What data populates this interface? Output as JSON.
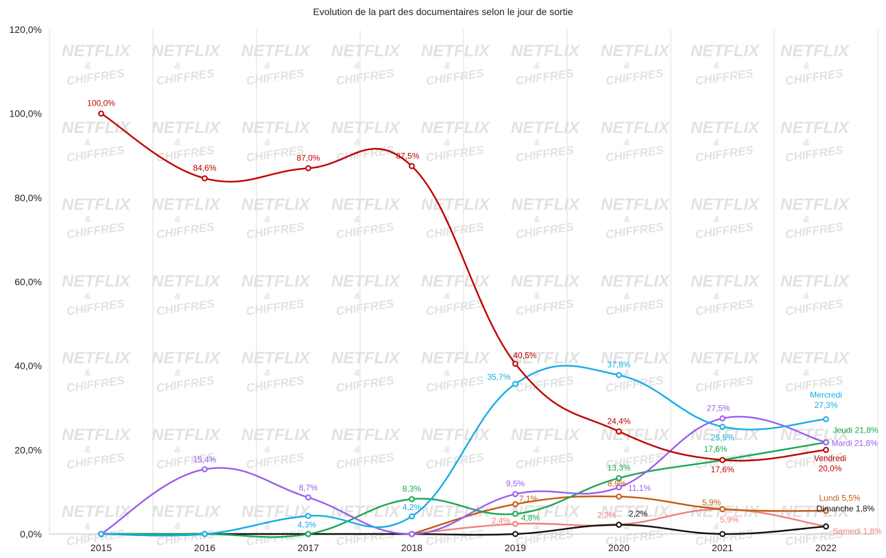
{
  "chart_data": {
    "type": "line",
    "title": "Evolution de la part des documentaires selon le jour de sortie",
    "xlabel": "",
    "ylabel": "",
    "ylim": [
      0,
      120
    ],
    "yticks": [
      "0,0%",
      "20,0%",
      "40,0%",
      "60,0%",
      "80,0%",
      "100,0%",
      "120,0%"
    ],
    "x": [
      "2015",
      "2016",
      "2017",
      "2018",
      "2019",
      "2020",
      "2021",
      "2022"
    ],
    "grid": "vertical",
    "watermark": {
      "line1": "NETFLIX",
      "line2": "&",
      "line3": "CHIFFRES"
    },
    "series": [
      {
        "name": "Vendredi",
        "color": "#c00000",
        "values": [
          100.0,
          84.6,
          87.0,
          87.5,
          40.5,
          24.4,
          17.6,
          20.0
        ],
        "labels": [
          "100,0%",
          "84,6%",
          "87,0%",
          "87,5%",
          "40,5%",
          "24,4%",
          "17,6%",
          "Vendredi 20,0%"
        ]
      },
      {
        "name": "Mercredi",
        "color": "#16ade5",
        "values": [
          0,
          0,
          4.3,
          4.2,
          35.7,
          37.8,
          25.5,
          27.3
        ],
        "labels": [
          "",
          "",
          "4,3%",
          "4,2%",
          "35,7%",
          "37,8%",
          "25,5%",
          "Mercredi 27,3%"
        ]
      },
      {
        "name": "Mardi",
        "color": "#9b5cf0",
        "values": [
          0,
          15.4,
          8.7,
          0,
          9.5,
          11.1,
          27.5,
          21.8
        ],
        "labels": [
          "",
          "15,4%",
          "8,7%",
          "",
          "9,5%",
          "11,1%",
          "27,5%",
          "Mardi 21,8%"
        ]
      },
      {
        "name": "Jeudi",
        "color": "#1aa653",
        "values": [
          0,
          0,
          0,
          8.3,
          4.8,
          13.3,
          17.6,
          21.8
        ],
        "labels": [
          "",
          "",
          "",
          "8,3%",
          "4,8%",
          "13,3%",
          "17,6%",
          "Jeudi 21,8%"
        ]
      },
      {
        "name": "Lundi",
        "color": "#c55a11",
        "values": [
          null,
          null,
          null,
          0,
          7.1,
          8.9,
          5.9,
          5.5
        ],
        "labels": [
          "",
          "",
          "",
          "",
          "7,1%",
          "8,9%",
          "5,9%",
          "Lundi 5,5%"
        ]
      },
      {
        "name": "Samedi",
        "color": "#f07f7f",
        "values": [
          null,
          null,
          null,
          0,
          2.4,
          2.2,
          5.9,
          1.8
        ],
        "labels": [
          "",
          "",
          "",
          "",
          "2,4%",
          "2,2%",
          "5,9%",
          "Samedi 1,8%"
        ]
      },
      {
        "name": "Dimanche",
        "color": "#111111",
        "values": [
          0,
          0,
          0,
          0,
          0,
          2.2,
          0,
          1.8
        ],
        "labels": [
          "",
          "",
          "",
          "",
          "",
          "2,2%",
          "",
          "Dimanche 1,8%"
        ]
      }
    ]
  }
}
